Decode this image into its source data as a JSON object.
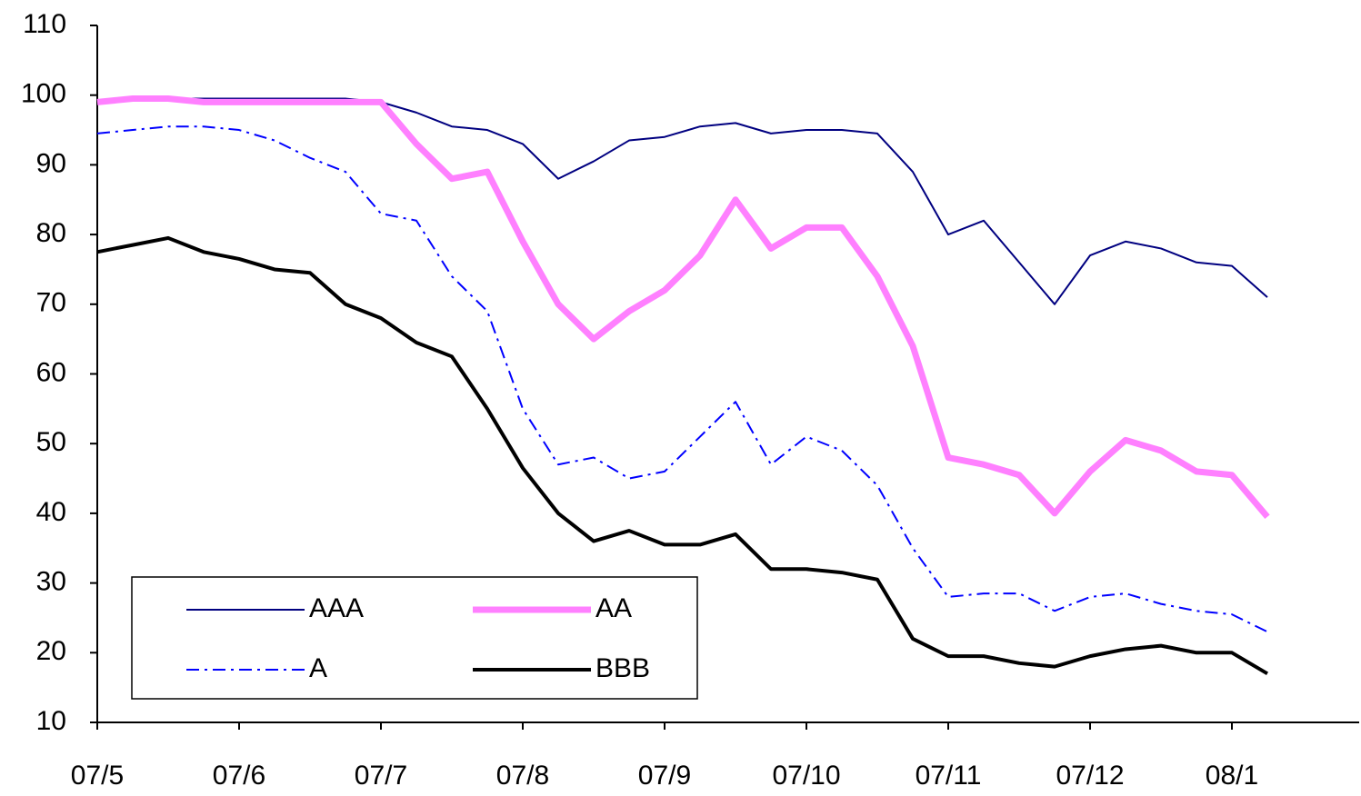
{
  "chart_data": {
    "type": "line",
    "categories": [
      "07/5",
      null,
      null,
      null,
      "07/6",
      null,
      null,
      null,
      "07/7",
      null,
      null,
      null,
      "07/8",
      null,
      null,
      null,
      "07/9",
      null,
      null,
      null,
      "07/10",
      null,
      null,
      null,
      "07/11",
      null,
      null,
      null,
      "07/12",
      null,
      null,
      null,
      "08/1",
      null,
      null,
      null
    ],
    "series": [
      {
        "name": "AAA",
        "color": "#000080",
        "values": [
          99,
          99.5,
          99.5,
          99.5,
          99.5,
          99.5,
          99.5,
          99.5,
          99,
          97.5,
          95.5,
          95,
          93,
          88,
          90.5,
          93.5,
          94,
          95.5,
          96,
          94.5,
          95,
          95,
          94.5,
          89,
          80,
          82,
          76,
          70,
          77,
          79,
          78,
          76,
          75.5,
          71,
          null,
          null
        ]
      },
      {
        "name": "AA",
        "color": "#ff80ff",
        "values": [
          99,
          99.5,
          99.5,
          99,
          99,
          99,
          99,
          99,
          99,
          93,
          88,
          89,
          79,
          70,
          65,
          69,
          72,
          77,
          85,
          78,
          81,
          81,
          74,
          64,
          48,
          47,
          45.5,
          40,
          46,
          50.5,
          49,
          46,
          45.5,
          39.5,
          null,
          null
        ]
      },
      {
        "name": "A",
        "color": "#0000ff",
        "values": [
          94.5,
          95,
          95.5,
          95.5,
          95,
          93.5,
          91,
          89,
          83,
          82,
          74,
          69,
          55,
          47,
          48,
          45,
          46,
          51,
          56,
          47,
          51,
          49,
          44,
          35,
          28,
          28.5,
          28.5,
          26,
          28,
          28.5,
          27,
          26,
          25.5,
          23,
          null,
          null
        ]
      },
      {
        "name": "BBB",
        "color": "#000000",
        "values": [
          77.5,
          78.5,
          79.5,
          77.5,
          76.5,
          75,
          74.5,
          70,
          68,
          64.5,
          62.5,
          55,
          46.5,
          40,
          36,
          37.5,
          35.5,
          35.5,
          37,
          32,
          32,
          31.5,
          30.5,
          22,
          19.5,
          19.5,
          18.5,
          18,
          19.5,
          20.5,
          21,
          20,
          20,
          17,
          null,
          null
        ]
      }
    ],
    "ylim": [
      10,
      110
    ],
    "yticks": [
      10,
      20,
      30,
      40,
      50,
      60,
      70,
      80,
      90,
      100,
      110
    ],
    "grid": false,
    "legend": "lower left"
  }
}
